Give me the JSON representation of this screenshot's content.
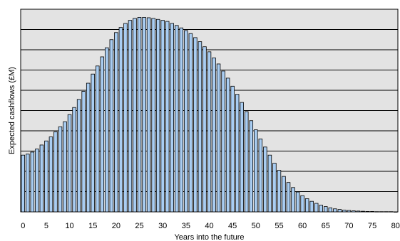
{
  "chart_data": {
    "type": "bar",
    "title": "",
    "xlabel": "Years into the future",
    "ylabel": "Expected cashflows (£M)",
    "xlim": [
      0,
      80
    ],
    "ylim": [
      0,
      10
    ],
    "x_tick_labels": [
      "0",
      "5",
      "10",
      "15",
      "20",
      "25",
      "30",
      "35",
      "40",
      "45",
      "50",
      "55",
      "60",
      "65",
      "70",
      "75",
      "80"
    ],
    "y_tick_labels": [],
    "grid": true,
    "legend": "none",
    "colors": {
      "bar_fill": "#a9cdf2",
      "bar_stroke": "#000000",
      "plot_background": "#e3e3e3",
      "gridline": "#000000"
    },
    "x": [
      0,
      1,
      2,
      3,
      4,
      5,
      6,
      7,
      8,
      9,
      10,
      11,
      12,
      13,
      14,
      15,
      16,
      17,
      18,
      19,
      20,
      21,
      22,
      23,
      24,
      25,
      26,
      27,
      28,
      29,
      30,
      31,
      32,
      33,
      34,
      35,
      36,
      37,
      38,
      39,
      40,
      41,
      42,
      43,
      44,
      45,
      46,
      47,
      48,
      49,
      50,
      51,
      52,
      53,
      54,
      55,
      56,
      57,
      58,
      59,
      60,
      61,
      62,
      63,
      64,
      65,
      66,
      67,
      68,
      69,
      70,
      71,
      72,
      73,
      74,
      75,
      76,
      77,
      78,
      79,
      80
    ],
    "values": [
      2.8,
      2.85,
      2.95,
      3.1,
      3.3,
      3.5,
      3.7,
      3.95,
      4.2,
      4.45,
      4.8,
      5.15,
      5.55,
      5.95,
      6.35,
      6.8,
      7.2,
      7.65,
      8.1,
      8.5,
      8.85,
      9.1,
      9.3,
      9.45,
      9.55,
      9.6,
      9.6,
      9.58,
      9.55,
      9.5,
      9.45,
      9.4,
      9.3,
      9.2,
      9.08,
      8.95,
      8.8,
      8.6,
      8.4,
      8.15,
      7.9,
      7.6,
      7.3,
      6.95,
      6.6,
      6.2,
      5.8,
      5.4,
      4.95,
      4.5,
      4.05,
      3.6,
      3.2,
      2.8,
      2.4,
      2.05,
      1.75,
      1.45,
      1.2,
      0.98,
      0.8,
      0.65,
      0.52,
      0.42,
      0.33,
      0.26,
      0.2,
      0.15,
      0.12,
      0.09,
      0.07,
      0.05,
      0.04,
      0.03,
      0.02,
      0.02,
      0.01,
      0.01,
      0.01,
      0.01,
      0
    ]
  }
}
